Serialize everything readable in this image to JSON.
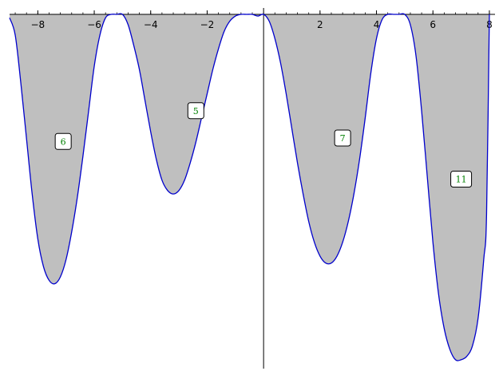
{
  "chart_data": {
    "type": "area",
    "title": "",
    "xlabel": "",
    "ylabel": "",
    "xlim": [
      -9.0,
      8.2
    ],
    "ylim": [
      -1.0,
      0.0
    ],
    "grid": false,
    "x_ticks": [
      {
        "value": -8,
        "label": "−8"
      },
      {
        "value": -6,
        "label": "−6"
      },
      {
        "value": -4,
        "label": "−4"
      },
      {
        "value": -2,
        "label": "−2"
      },
      {
        "value": 2,
        "label": "2"
      },
      {
        "value": 4,
        "label": "4"
      },
      {
        "value": 6,
        "label": "6"
      },
      {
        "value": 8,
        "label": "8"
      }
    ],
    "series": [
      {
        "x": [
          -9.0,
          -8.8,
          -8.6,
          -8.4,
          -8.2,
          -8.0,
          -7.8,
          -7.6,
          -7.4,
          -7.2,
          -7.0,
          -6.8,
          -6.6,
          -6.4,
          -6.2,
          -6.0,
          -5.8,
          -5.6,
          -5.4,
          -5.2,
          -5.0,
          -4.8,
          -4.6,
          -4.4,
          -4.2,
          -4.0,
          -3.8,
          -3.6,
          -3.4,
          -3.2,
          -3.0,
          -2.8,
          -2.6,
          -2.4,
          -2.2,
          -2.0,
          -1.8,
          -1.6,
          -1.4,
          -1.2,
          -1.0,
          -0.8,
          -0.6,
          -0.4,
          -0.2,
          0.0,
          0.2,
          0.4,
          0.6,
          0.8,
          1.0,
          1.2,
          1.4,
          1.6,
          1.8,
          2.0,
          2.2,
          2.4,
          2.6,
          2.8,
          3.0,
          3.2,
          3.4,
          3.6,
          3.8,
          4.0,
          4.2,
          4.4,
          4.6,
          4.8,
          5.0,
          5.2,
          5.4,
          5.6,
          5.8,
          6.0,
          6.2,
          6.4,
          6.6,
          6.8,
          7.0,
          7.2,
          7.4,
          7.6,
          7.8,
          7.9,
          8.0
        ],
        "values": [
          -0.01,
          -0.06,
          -0.2,
          -0.36,
          -0.52,
          -0.65,
          -0.73,
          -0.77,
          -0.78,
          -0.76,
          -0.71,
          -0.63,
          -0.53,
          -0.41,
          -0.28,
          -0.15,
          -0.06,
          -0.01,
          0.0,
          0.0,
          0.0,
          -0.03,
          -0.09,
          -0.16,
          -0.25,
          -0.34,
          -0.42,
          -0.48,
          -0.51,
          -0.52,
          -0.51,
          -0.48,
          -0.43,
          -0.37,
          -0.3,
          -0.23,
          -0.16,
          -0.1,
          -0.05,
          -0.02,
          -0.005,
          0.0,
          0.0,
          0.0,
          -0.005,
          0.0,
          -0.02,
          -0.07,
          -0.14,
          -0.23,
          -0.33,
          -0.43,
          -0.52,
          -0.6,
          -0.66,
          -0.7,
          -0.72,
          -0.72,
          -0.7,
          -0.66,
          -0.6,
          -0.52,
          -0.42,
          -0.3,
          -0.17,
          -0.07,
          -0.015,
          0.0,
          0.0,
          0.0,
          0.0,
          -0.03,
          -0.12,
          -0.28,
          -0.47,
          -0.66,
          -0.81,
          -0.91,
          -0.97,
          -1.0,
          -1.0,
          -0.99,
          -0.96,
          -0.88,
          -0.71,
          -0.58,
          0.0
        ]
      }
    ],
    "annotations": [
      {
        "text": "6",
        "x": -7.1,
        "y": -0.368
      },
      {
        "text": "5",
        "x": -2.4,
        "y": -0.279
      },
      {
        "text": "7",
        "x": 2.8,
        "y": -0.358
      },
      {
        "text": "11",
        "x": 7.0,
        "y": -0.477
      }
    ],
    "colors": {
      "curve": "#0000cc",
      "fill": "#bfbfbf",
      "axis": "#000000",
      "label_text": "#008000",
      "label_box": "#000000"
    }
  }
}
